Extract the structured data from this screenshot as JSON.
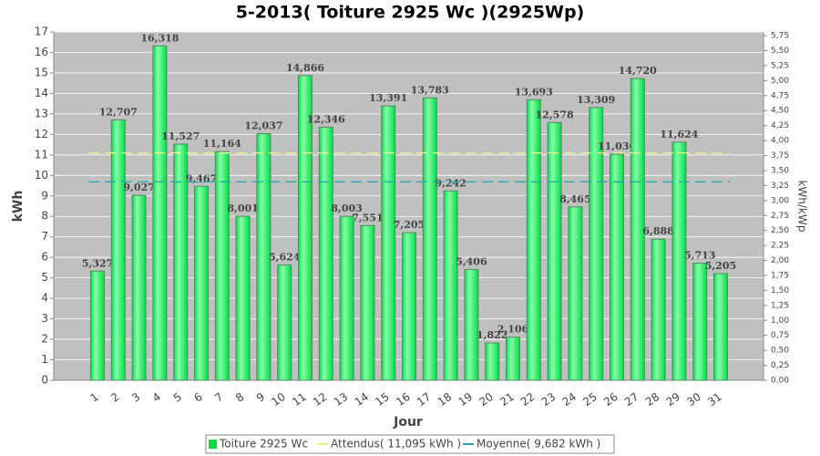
{
  "chart_data": {
    "type": "bar",
    "title": "5-2013( Toiture 2925 Wc )(2925Wp)",
    "x_label": "Jour",
    "y_label": "kWh",
    "y2_label": "kWh/kWp",
    "categories": [
      "1",
      "2",
      "3",
      "4",
      "5",
      "6",
      "7",
      "8",
      "9",
      "10",
      "11",
      "12",
      "13",
      "14",
      "15",
      "16",
      "17",
      "18",
      "19",
      "20",
      "21",
      "22",
      "23",
      "24",
      "25",
      "26",
      "27",
      "28",
      "29",
      "30",
      "31"
    ],
    "series": [
      {
        "name": "Toiture 2925 Wc",
        "color": "#00dd44",
        "values": [
          5.327,
          12.707,
          9.027,
          16.318,
          11.527,
          9.467,
          11.164,
          8.001,
          12.037,
          5.624,
          14.866,
          12.346,
          8.003,
          7.551,
          13.391,
          7.205,
          13.783,
          9.242,
          5.406,
          1.822,
          2.106,
          13.693,
          12.578,
          8.465,
          13.309,
          11.03,
          14.72,
          6.888,
          11.624,
          5.713,
          5.205
        ],
        "value_labels": [
          "5,327",
          "12,707",
          "9,027",
          "16,318",
          "11,527",
          "9,467",
          "11,164",
          "8,001",
          "12,037",
          "5,624",
          "14,866",
          "12,346",
          "8,003",
          "7,551",
          "13,391",
          "7,205",
          "13,783",
          "9,242",
          "5,406",
          "1,822",
          "2,106",
          "13,693",
          "12,578",
          "8,465",
          "13,309",
          "11,030",
          "14,720",
          "6,888",
          "11,624",
          "5,713",
          "5,205"
        ]
      }
    ],
    "reference_lines": [
      {
        "name": "Attendus( 11,095 kWh )",
        "value": 11.095,
        "color": "#eeee88"
      },
      {
        "name": "Moyenne( 9,682 kWh )",
        "value": 9.682,
        "color": "#22aaaa"
      }
    ],
    "ylim": [
      0,
      17
    ],
    "yticks": [
      0,
      1,
      2,
      3,
      4,
      5,
      6,
      7,
      8,
      9,
      10,
      11,
      12,
      13,
      14,
      15,
      16,
      17
    ],
    "y2lim": [
      0,
      5.812
    ],
    "y2ticks": [
      {
        "value": 0,
        "label": "0,00"
      },
      {
        "value": 0.25,
        "label": "0,25"
      },
      {
        "value": 0.5,
        "label": "0,50"
      },
      {
        "value": 0.75,
        "label": "0,75"
      },
      {
        "value": 1,
        "label": "1,00"
      },
      {
        "value": 1.25,
        "label": "1,25"
      },
      {
        "value": 1.5,
        "label": "1,50"
      },
      {
        "value": 1.75,
        "label": "1,75"
      },
      {
        "value": 2,
        "label": "2,00"
      },
      {
        "value": 2.25,
        "label": "2,25"
      },
      {
        "value": 2.5,
        "label": "2,50"
      },
      {
        "value": 2.75,
        "label": "2,75"
      },
      {
        "value": 3,
        "label": "3,00"
      },
      {
        "value": 3.25,
        "label": "3,25"
      },
      {
        "value": 3.5,
        "label": "3,50"
      },
      {
        "value": 3.75,
        "label": "3,75"
      },
      {
        "value": 4,
        "label": "4,00"
      },
      {
        "value": 4.25,
        "label": "4,25"
      },
      {
        "value": 4.5,
        "label": "4,50"
      },
      {
        "value": 4.75,
        "label": "4,75"
      },
      {
        "value": 5,
        "label": "5,00"
      },
      {
        "value": 5.25,
        "label": "5,25"
      },
      {
        "value": 5.5,
        "label": "5,50"
      },
      {
        "value": 5.75,
        "label": "5,75"
      }
    ],
    "grid": true
  }
}
